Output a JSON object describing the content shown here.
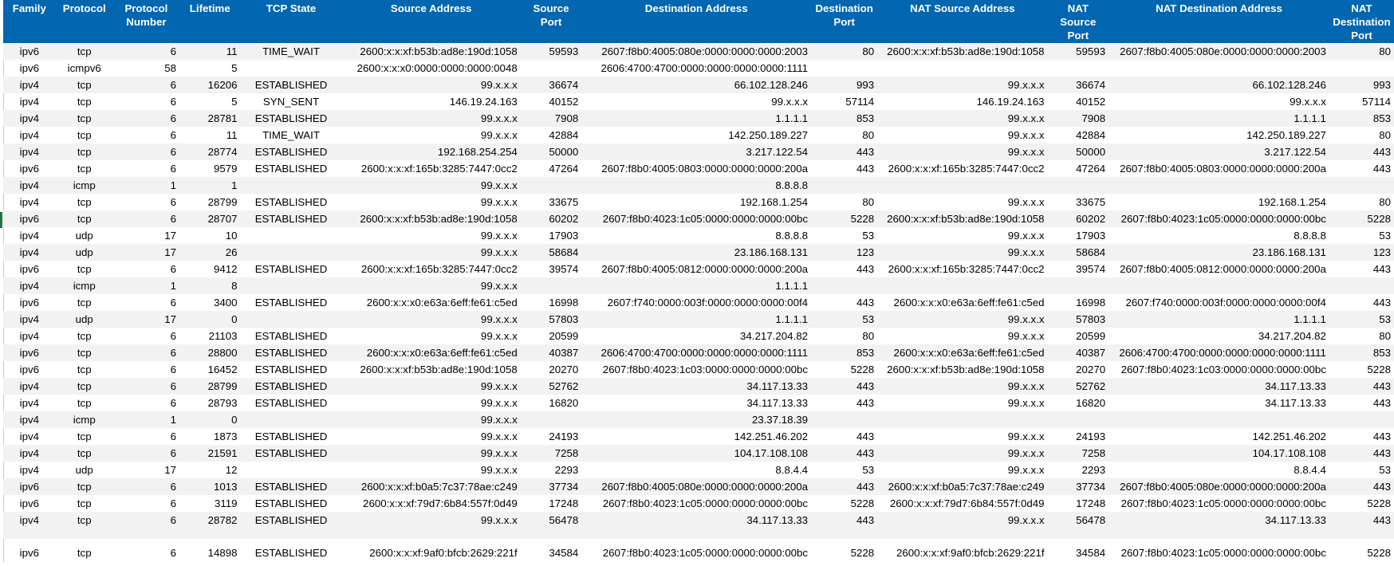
{
  "header": [
    "Family",
    "Protocol",
    "Protocol Number",
    "Lifetime",
    "TCP State",
    "Source Address",
    "Source Port",
    "Destination Address",
    "Destination Port",
    "NAT Source Address",
    "NAT Source Port",
    "NAT Destination Address",
    "NAT Destination Port"
  ],
  "rows": [
    [
      "ipv6",
      "tcp",
      "6",
      "11",
      "TIME_WAIT",
      "2600:x:x:xf:b53b:ad8e:190d:1058",
      "59593",
      "2607:f8b0:4005:080e:0000:0000:0000:2003",
      "80",
      "2600:x:x:xf:b53b:ad8e:190d:1058",
      "59593",
      "2607:f8b0:4005:080e:0000:0000:0000:2003",
      "80"
    ],
    [
      "ipv6",
      "icmpv6",
      "58",
      "5",
      "",
      "2600:x:x:x0:0000:0000:0000:0048",
      "",
      "2606:4700:4700:0000:0000:0000:0000:1111",
      "",
      "",
      "",
      "",
      ""
    ],
    [
      "ipv4",
      "tcp",
      "6",
      "16206",
      "ESTABLISHED",
      "99.x.x.x",
      "36674",
      "66.102.128.246",
      "993",
      "99.x.x.x",
      "36674",
      "66.102.128.246",
      "993"
    ],
    [
      "ipv4",
      "tcp",
      "6",
      "5",
      "SYN_SENT",
      "146.19.24.163",
      "40152",
      "99.x.x.x",
      "57114",
      "146.19.24.163",
      "40152",
      "99.x.x.x",
      "57114"
    ],
    [
      "ipv4",
      "tcp",
      "6",
      "28781",
      "ESTABLISHED",
      "99.x.x.x",
      "7908",
      "1.1.1.1",
      "853",
      "99.x.x.x",
      "7908",
      "1.1.1.1",
      "853"
    ],
    [
      "ipv4",
      "tcp",
      "6",
      "11",
      "TIME_WAIT",
      "99.x.x.x",
      "42884",
      "142.250.189.227",
      "80",
      "99.x.x.x",
      "42884",
      "142.250.189.227",
      "80"
    ],
    [
      "ipv4",
      "tcp",
      "6",
      "28774",
      "ESTABLISHED",
      "192.168.254.254",
      "50000",
      "3.217.122.54",
      "443",
      "99.x.x.x",
      "50000",
      "3.217.122.54",
      "443"
    ],
    [
      "ipv6",
      "tcp",
      "6",
      "9579",
      "ESTABLISHED",
      "2600:x:x:xf:165b:3285:7447:0cc2",
      "47264",
      "2607:f8b0:4005:0803:0000:0000:0000:200a",
      "443",
      "2600:x:x:xf:165b:3285:7447:0cc2",
      "47264",
      "2607:f8b0:4005:0803:0000:0000:0000:200a",
      "443"
    ],
    [
      "ipv4",
      "icmp",
      "1",
      "1",
      "",
      "99.x.x.x",
      "",
      "8.8.8.8",
      "",
      "",
      "",
      "",
      ""
    ],
    [
      "ipv4",
      "tcp",
      "6",
      "28799",
      "ESTABLISHED",
      "99.x.x.x",
      "33675",
      "192.168.1.254",
      "80",
      "99.x.x.x",
      "33675",
      "192.168.1.254",
      "80"
    ],
    [
      "ipv6",
      "tcp",
      "6",
      "28707",
      "ESTABLISHED",
      "2600:x:x:xf:b53b:ad8e:190d:1058",
      "60202",
      "2607:f8b0:4023:1c05:0000:0000:0000:00bc",
      "5228",
      "2600:x:x:xf:b53b:ad8e:190d:1058",
      "60202",
      "2607:f8b0:4023:1c05:0000:0000:0000:00bc",
      "5228"
    ],
    [
      "ipv4",
      "udp",
      "17",
      "10",
      "",
      "99.x.x.x",
      "17903",
      "8.8.8.8",
      "53",
      "99.x.x.x",
      "17903",
      "8.8.8.8",
      "53"
    ],
    [
      "ipv4",
      "udp",
      "17",
      "26",
      "",
      "99.x.x.x",
      "58684",
      "23.186.168.131",
      "123",
      "99.x.x.x",
      "58684",
      "23.186.168.131",
      "123"
    ],
    [
      "ipv6",
      "tcp",
      "6",
      "9412",
      "ESTABLISHED",
      "2600:x:x:xf:165b:3285:7447:0cc2",
      "39574",
      "2607:f8b0:4005:0812:0000:0000:0000:200a",
      "443",
      "2600:x:x:xf:165b:3285:7447:0cc2",
      "39574",
      "2607:f8b0:4005:0812:0000:0000:0000:200a",
      "443"
    ],
    [
      "ipv4",
      "icmp",
      "1",
      "8",
      "",
      "99.x.x.x",
      "",
      "1.1.1.1",
      "",
      "",
      "",
      "",
      ""
    ],
    [
      "ipv6",
      "tcp",
      "6",
      "3400",
      "ESTABLISHED",
      "2600:x:x:x0:e63a:6eff:fe61:c5ed",
      "16998",
      "2607:f740:0000:003f:0000:0000:0000:00f4",
      "443",
      "2600:x:x:x0:e63a:6eff:fe61:c5ed",
      "16998",
      "2607:f740:0000:003f:0000:0000:0000:00f4",
      "443"
    ],
    [
      "ipv4",
      "udp",
      "17",
      "0",
      "",
      "99.x.x.x",
      "57803",
      "1.1.1.1",
      "53",
      "99.x.x.x",
      "57803",
      "1.1.1.1",
      "53"
    ],
    [
      "ipv4",
      "tcp",
      "6",
      "21103",
      "ESTABLISHED",
      "99.x.x.x",
      "20599",
      "34.217.204.82",
      "80",
      "99.x.x.x",
      "20599",
      "34.217.204.82",
      "80"
    ],
    [
      "ipv6",
      "tcp",
      "6",
      "28800",
      "ESTABLISHED",
      "2600:x:x:x0:e63a:6eff:fe61:c5ed",
      "40387",
      "2606:4700:4700:0000:0000:0000:0000:1111",
      "853",
      "2600:x:x:x0:e63a:6eff:fe61:c5ed",
      "40387",
      "2606:4700:4700:0000:0000:0000:0000:1111",
      "853"
    ],
    [
      "ipv6",
      "tcp",
      "6",
      "16452",
      "ESTABLISHED",
      "2600:x:x:xf:b53b:ad8e:190d:1058",
      "20270",
      "2607:f8b0:4023:1c03:0000:0000:0000:00bc",
      "5228",
      "2600:x:x:xf:b53b:ad8e:190d:1058",
      "20270",
      "2607:f8b0:4023:1c03:0000:0000:0000:00bc",
      "5228"
    ],
    [
      "ipv4",
      "tcp",
      "6",
      "28799",
      "ESTABLISHED",
      "99.x.x.x",
      "52762",
      "34.117.13.33",
      "443",
      "99.x.x.x",
      "52762",
      "34.117.13.33",
      "443"
    ],
    [
      "ipv4",
      "tcp",
      "6",
      "28793",
      "ESTABLISHED",
      "99.x.x.x",
      "16820",
      "34.117.13.33",
      "443",
      "99.x.x.x",
      "16820",
      "34.117.13.33",
      "443"
    ],
    [
      "ipv4",
      "icmp",
      "1",
      "0",
      "",
      "99.x.x.x",
      "",
      "23.37.18.39",
      "",
      "",
      "",
      "",
      ""
    ],
    [
      "ipv4",
      "tcp",
      "6",
      "1873",
      "ESTABLISHED",
      "99.x.x.x",
      "24193",
      "142.251.46.202",
      "443",
      "99.x.x.x",
      "24193",
      "142.251.46.202",
      "443"
    ],
    [
      "ipv4",
      "tcp",
      "6",
      "21591",
      "ESTABLISHED",
      "99.x.x.x",
      "7258",
      "104.17.108.108",
      "443",
      "99.x.x.x",
      "7258",
      "104.17.108.108",
      "443"
    ],
    [
      "ipv4",
      "udp",
      "17",
      "12",
      "",
      "99.x.x.x",
      "2293",
      "8.8.4.4",
      "53",
      "99.x.x.x",
      "2293",
      "8.8.4.4",
      "53"
    ],
    [
      "ipv6",
      "tcp",
      "6",
      "1013",
      "ESTABLISHED",
      "2600:x:x:xf:b0a5:7c37:78ae:c249",
      "37734",
      "2607:f8b0:4005:080e:0000:0000:0000:200a",
      "443",
      "2600:x:x:xf:b0a5:7c37:78ae:c249",
      "37734",
      "2607:f8b0:4005:080e:0000:0000:0000:200a",
      "443"
    ],
    [
      "ipv6",
      "tcp",
      "6",
      "3119",
      "ESTABLISHED",
      "2600:x:x:xf:79d7:6b84:557f:0d49",
      "17248",
      "2607:f8b0:4023:1c05:0000:0000:0000:00bc",
      "5228",
      "2600:x:x:xf:79d7:6b84:557f:0d49",
      "17248",
      "2607:f8b0:4023:1c05:0000:0000:0000:00bc",
      "5228"
    ],
    [
      "ipv4",
      "tcp",
      "6",
      "28782",
      "ESTABLISHED",
      "99.x.x.x",
      "56478",
      "34.117.13.33",
      "443",
      "99.x.x.x",
      "56478",
      "34.117.13.33",
      "443"
    ],
    [
      "ipv6",
      "tcp",
      "6",
      "14898",
      "ESTABLISHED",
      "2600:x:x:xf:9af0:bfcb:2629:221f",
      "34584",
      "2607:f8b0:4023:1c05:0000:0000:0000:00bc",
      "5228",
      "2600:x:x:xf:9af0:bfcb:2629:221f",
      "34584",
      "2607:f8b0:4023:1c05:0000:0000:0000:00bc",
      "5228"
    ]
  ]
}
